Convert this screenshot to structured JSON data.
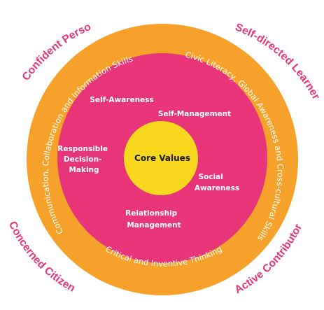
{
  "colors": {
    "outer_ring": "#f5a12a",
    "middle_circle": "#e8357a",
    "core": "#f8d71f",
    "outcome_text": "#e8357a",
    "ring_text": "#ffffff",
    "core_text": "#1a1a1a"
  },
  "outcomes": {
    "top_left": "Confident Person",
    "top_right": "Self-directed Learner",
    "bottom_left": "Concerned Citizen",
    "bottom_right": "Active Contributor"
  },
  "ring_competencies": {
    "left": "Communication, Collaboration and Information Skills",
    "right": "Civic Literacy, Global Awareness and Cross-cultural Skills",
    "bottom": "Critical and Inventive Thinking"
  },
  "competencies": {
    "self_awareness": "Self-Awareness",
    "self_management": "Self-Management",
    "responsible_decision_making": [
      "Responsible",
      "Decision-",
      "Making"
    ],
    "social_awareness": [
      "Social",
      "Awareness"
    ],
    "relationship_management": [
      "Relationship",
      "Management"
    ]
  },
  "core": "Core Values"
}
